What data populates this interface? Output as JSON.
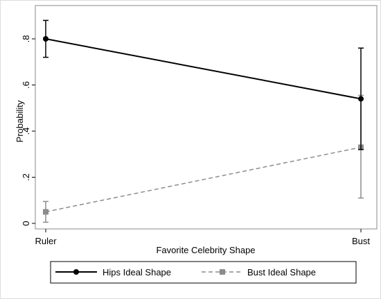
{
  "chart_data": {
    "type": "line",
    "title": "",
    "xlabel": "Favorite Celebrity Shape",
    "ylabel": "Probability",
    "categories": [
      "Ruler",
      "Bust"
    ],
    "yticks": [
      0,
      0.2,
      0.4,
      0.6,
      0.8
    ],
    "ytick_labels": [
      "0",
      ".2",
      ".4",
      ".6",
      ".8"
    ],
    "ylim": [
      -0.02,
      0.9
    ],
    "grid": false,
    "legend_position": "bottom",
    "series": [
      {
        "name": "Hips Ideal Shape",
        "values": [
          0.8,
          0.54
        ],
        "ci_low": [
          0.72,
          0.32
        ],
        "ci_high": [
          0.88,
          0.76
        ],
        "color": "#000000",
        "marker": "circle",
        "line_style": "solid"
      },
      {
        "name": "Bust Ideal Shape",
        "values": [
          0.05,
          0.33
        ],
        "ci_low": [
          0.005,
          0.11
        ],
        "ci_high": [
          0.095,
          0.555
        ],
        "color": "#8c8c8c",
        "marker": "square",
        "line_style": "dashed"
      }
    ]
  }
}
